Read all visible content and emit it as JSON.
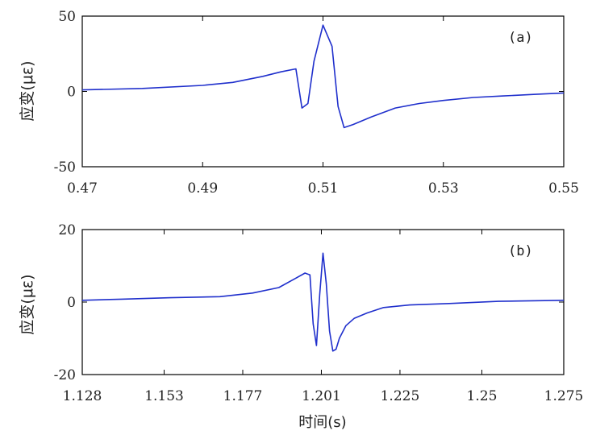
{
  "chart_data": [
    {
      "type": "line",
      "panel_label": "(a)",
      "ylabel": "应变(με)",
      "xlabel": "",
      "xlim": [
        0.47,
        0.55
      ],
      "ylim": [
        -50,
        50
      ],
      "xticks": [
        "0.47",
        "0.49",
        "0.51",
        "0.53",
        "0.55"
      ],
      "yticks": [
        "50",
        "0",
        "-50"
      ],
      "xtick_values": [
        0.47,
        0.49,
        0.51,
        0.53,
        0.55
      ],
      "ytick_values": [
        50,
        0,
        -50
      ],
      "grid": false,
      "color": "#1f2fcc",
      "x": [
        0.47,
        0.48,
        0.49,
        0.495,
        0.5,
        0.503,
        0.5055,
        0.5065,
        0.5075,
        0.5085,
        0.51,
        0.5115,
        0.5125,
        0.5135,
        0.515,
        0.518,
        0.522,
        0.526,
        0.53,
        0.535,
        0.54,
        0.545,
        0.55
      ],
      "y": [
        1,
        2,
        4,
        6,
        10,
        13,
        15,
        -11,
        -8,
        20,
        44,
        30,
        -10,
        -24,
        -22,
        -17,
        -11,
        -8,
        -6,
        -4,
        -3,
        -2,
        -1
      ]
    },
    {
      "type": "line",
      "panel_label": "(b)",
      "ylabel": "应变(με)",
      "xlabel": "时间(s)",
      "xlim": [
        1.128,
        1.275
      ],
      "ylim": [
        -20,
        20
      ],
      "xticks": [
        "1.128",
        "1.153",
        "1.177",
        "1.201",
        "1.225",
        "1.25",
        "1.275"
      ],
      "yticks": [
        "20",
        "0",
        "-20"
      ],
      "xtick_values": [
        1.128,
        1.153,
        1.177,
        1.201,
        1.225,
        1.25,
        1.275
      ],
      "ytick_values": [
        20,
        0,
        -20
      ],
      "grid": false,
      "color": "#1f2fcc",
      "x": [
        1.128,
        1.14,
        1.155,
        1.17,
        1.18,
        1.188,
        1.193,
        1.196,
        1.1975,
        1.1985,
        1.1995,
        1.2005,
        1.2015,
        1.2025,
        1.2035,
        1.2045,
        1.2055,
        1.2065,
        1.2085,
        1.211,
        1.215,
        1.22,
        1.228,
        1.24,
        1.255,
        1.275
      ],
      "y": [
        0.5,
        0.8,
        1.2,
        1.5,
        2.5,
        4.0,
        6.5,
        8.0,
        7.5,
        -6.0,
        -12.0,
        2.0,
        13.5,
        5.0,
        -8.0,
        -13.5,
        -13.0,
        -10.0,
        -6.5,
        -4.5,
        -3.0,
        -1.5,
        -0.8,
        -0.4,
        0.2,
        0.5
      ]
    }
  ]
}
